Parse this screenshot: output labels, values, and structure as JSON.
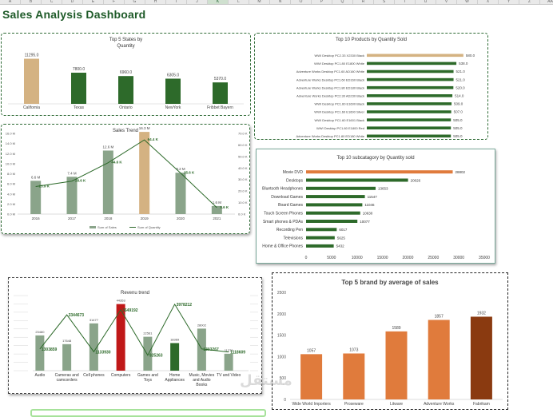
{
  "sheet": {
    "columns": [
      "A",
      "B",
      "C",
      "D",
      "E",
      "F",
      "G",
      "H",
      "I",
      "J",
      "K",
      "L",
      "M",
      "N",
      "O",
      "P",
      "Q",
      "R",
      "S",
      "T",
      "U",
      "V",
      "W",
      "X",
      "Y",
      "Z",
      "AA"
    ],
    "selected_column": "K"
  },
  "dashboard_title": "Sales Analysis Dashboard",
  "colors": {
    "tan": "#d4b282",
    "dark_green": "#2d6a2a",
    "sage": "#8aa48a",
    "orange": "#e07b3c",
    "red": "#c01818",
    "brown": "#8a3a10"
  },
  "charts": {
    "top_states": {
      "title": "Top 5 States by",
      "title2": "Quantity",
      "chart_data": {
        "type": "bar",
        "categories": [
          "California",
          "Texas",
          "Ontario",
          "NewYork",
          "Fribbet Bayern"
        ],
        "values": [
          11295.0,
          7800.0,
          6960.0,
          6305.0,
          5370.0
        ],
        "labels": [
          "11295.0",
          "7800.0",
          "6960.0",
          "6305.0",
          "5370.0"
        ],
        "ylim": [
          0,
          12000
        ]
      }
    },
    "top_products": {
      "title": "Top 10 Products by Quantity Sold",
      "chart_data": {
        "type": "bar",
        "orientation": "horizontal",
        "categories": [
          "WWI Desktop PC2.33 X2330 Black",
          "WWI Desktop PC1.80 E1800 White",
          "Adventure Works Desktop PC1.60 AD160 White",
          "Adventure Works Desktop PC1.60 ED160 Black",
          "Adventure Works Desktop PC1.80 ED180 Black",
          "Adventure Works Desktop PC2.30 AD230 Black",
          "WWI Desktop PC1.60 E1600 Black",
          "WWI Desktop PC1.60 E1600 Silver",
          "WWI Desktop PC1.60 E1601 Black",
          "WWI Desktop PC1.80 E1800 Red",
          "Adventure Works Desktop PC1.80 ED180 White"
        ],
        "values": [
          580,
          538,
          521,
          521,
          520,
          514,
          509,
          507,
          505,
          505,
          505
        ],
        "labels": [
          "580.0",
          "538.0",
          "521.0",
          "521.0",
          "520.0",
          "514.0",
          "509.0",
          "507.0",
          "505.0",
          "505.0",
          "505.0"
        ],
        "xlim": [
          0,
          600
        ]
      }
    },
    "sales_trend": {
      "title": "Sales Trend",
      "legend": [
        "Sum of Sales",
        "Sum of Quantity"
      ],
      "left_ticks": [
        "16.0 M",
        "14.0 M",
        "12.0 M",
        "10.0 M",
        "8.0 M",
        "6.0 M",
        "4.0 M",
        "2.0 M",
        "0.0 M"
      ],
      "right_ticks": [
        "70.0 K",
        "60.0 K",
        "50.0 K",
        "40.0 K",
        "30.0 K",
        "20.0 K",
        "10.0 K",
        "0.0 K"
      ],
      "chart_data": {
        "type": "bar",
        "categories": [
          "2016",
          "2017",
          "2018",
          "2019",
          "2020",
          "2021"
        ],
        "series": [
          {
            "name": "Sum of Sales",
            "values": [
              6.6,
              7.4,
              12.6,
              16.3,
              8.2,
              1.6
            ],
            "labels": [
              "6.6 M",
              "7.4 M",
              "12.6 M",
              "16.3 M",
              "8.2 M",
              "1.6 M"
            ]
          },
          {
            "name": "Sum of Quantity",
            "values": [
              23.9,
              28.6,
              44.6,
              64.4,
              35.6,
              5.6
            ],
            "labels": [
              "23.9 K",
              "28.6 K",
              "44.6 K",
              "64.4 K",
              "35.6 K",
              "5.6 K"
            ]
          }
        ],
        "ylim": [
          0,
          16
        ],
        "y2lim": [
          0,
          70
        ]
      }
    },
    "top_subcategory": {
      "title": "Top 10 subcatagory by Quantity sold",
      "x_ticks": [
        "0",
        "5000",
        "10000",
        "15000",
        "20000",
        "25000",
        "30000",
        "35000"
      ],
      "chart_data": {
        "type": "bar",
        "orientation": "horizontal",
        "categories": [
          "Movie DVD",
          "Desktops",
          "Bluetooth Headphones",
          "Download Games",
          "Board Games",
          "Touch Screen Phones",
          "Smart phones & PDAs",
          "Recording Pen",
          "Televisions",
          "Home & Office Phones"
        ],
        "values": [
          28802,
          20026,
          13653,
          11547,
          11046,
          10630,
          10077,
          6017,
          5625,
          5432
        ],
        "labels": [
          "28802",
          "20026",
          "13653",
          "11547",
          "11046",
          "10630",
          "10077",
          "6017",
          "5625",
          "5432"
        ],
        "xlim": [
          0,
          35000
        ]
      }
    },
    "revenue_trend": {
      "title": "Revenu trend",
      "chart_data": {
        "type": "bar",
        "categories": [
          "Audio",
          "Cameras and camcorders",
          "Cell phones",
          "Computers",
          "Games and Toys",
          "Home Appliances",
          "Music, Movies and Audio Books",
          "TV and Video"
        ],
        "series": [
          {
            "name": "Quantity",
            "values": [
              23480,
              17648,
              31477,
              44353,
              22561,
              18369,
              28002,
              11276
            ],
            "labels": [
              "23480",
              "17648",
              "31477",
              "44353",
              "22561",
              "18369",
              "28002",
              "11276"
            ]
          },
          {
            "name": "Revenue",
            "values": [
              1303859,
              3344673,
              1133930,
              3649192,
              925263,
              3978212,
              1303267,
              1118609
            ],
            "labels": [
              "1303859",
              "3344673",
              "1133930",
              "3649192",
              "925263",
              "3978212",
              "1303267",
              "1118609"
            ]
          }
        ]
      }
    },
    "top_brand": {
      "title": "Top 5 brand by average of sales",
      "y_ticks": [
        "2500",
        "2000",
        "1500",
        "1000",
        "500",
        "0"
      ],
      "chart_data": {
        "type": "bar",
        "categories": [
          "Wide World Importers",
          "Proseware",
          "Litware",
          "Adventure Works",
          "Fabrikam"
        ],
        "values": [
          1057,
          1073,
          1589,
          1857,
          1932
        ],
        "labels": [
          "1057",
          "1073",
          "1589",
          "1857",
          "1932"
        ],
        "ylim": [
          0,
          2500
        ]
      }
    }
  },
  "watermark": "مستقل"
}
